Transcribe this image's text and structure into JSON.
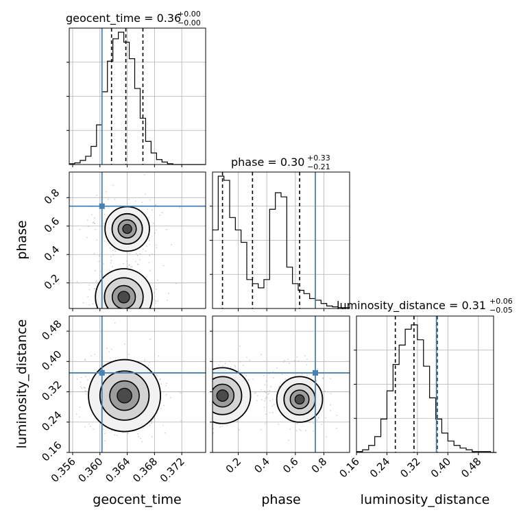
{
  "chart_data": {
    "type": "corner",
    "parameters": [
      "geocent_time",
      "phase",
      "luminosity_distance"
    ],
    "truth": {
      "geocent_time": 0.3603,
      "phase": 0.74,
      "luminosity_distance": 0.37
    },
    "titles": [
      {
        "text": "geocent_time = 0.36",
        "sup": "+0.00",
        "sub": "−0.00"
      },
      {
        "text": "phase = 0.30",
        "sup": "+0.33",
        "sub": "−0.21"
      },
      {
        "text": "luminosity_distance = 0.31",
        "sup": "+0.06",
        "sub": "−0.05"
      }
    ],
    "axis_labels": {
      "x": [
        "geocent_time",
        "phase",
        "luminosity_distance"
      ],
      "y": [
        "phase",
        "luminosity_distance"
      ]
    },
    "ticks": {
      "geocent_time": [
        "0.356",
        "0.360",
        "0.364",
        "0.368",
        "0.372"
      ],
      "phase": [
        "0.2",
        "0.4",
        "0.6",
        "0.8"
      ],
      "luminosity_distance": [
        "0.16",
        "0.24",
        "0.32",
        "0.40",
        "0.48"
      ]
    },
    "ranges": {
      "geocent_time": [
        0.3555,
        0.3755
      ],
      "phase": [
        0.02,
        0.98
      ],
      "luminosity_distance": [
        0.16,
        0.52
      ]
    },
    "histograms": {
      "geocent_time": {
        "edges_start": 0.3555,
        "bin_width": 0.0008,
        "counts": [
          1,
          2,
          5,
          10,
          22,
          48,
          88,
          125,
          152,
          160,
          148,
          128,
          92,
          56,
          28,
          14,
          6,
          3,
          1,
          0,
          0,
          0,
          0,
          0,
          0
        ],
        "quantiles": [
          0.3617,
          0.3638,
          0.3663
        ],
        "ylim": [
          0,
          165
        ]
      },
      "phase": {
        "edges_start": 0.02,
        "bin_width": 0.04,
        "counts": [
          95,
          160,
          155,
          110,
          95,
          80,
          35,
          30,
          25,
          35,
          120,
          140,
          135,
          50,
          30,
          22,
          18,
          12,
          10,
          6,
          3,
          2,
          1,
          1
        ],
        "quantiles": [
          0.09,
          0.3,
          0.63
        ],
        "ylim": [
          0,
          165
        ]
      },
      "luminosity_distance": {
        "edges_start": 0.16,
        "bin_width": 0.016,
        "counts": [
          1,
          3,
          8,
          18,
          38,
          70,
          100,
          122,
          140,
          145,
          128,
          98,
          62,
          38,
          22,
          13,
          8,
          5,
          3,
          1,
          1,
          1,
          0
        ],
        "quantiles": [
          0.262,
          0.311,
          0.372
        ],
        "ylim": [
          0,
          155
        ]
      }
    },
    "density_modes": [
      {
        "pair": [
          "geocent_time",
          "phase"
        ],
        "centers": [
          {
            "x": 0.3635,
            "y": 0.1,
            "w": 0.62
          },
          {
            "x": 0.364,
            "y": 0.58,
            "w": 0.38
          }
        ]
      },
      {
        "pair": [
          "geocent_time",
          "luminosity_distance"
        ],
        "centers": [
          {
            "x": 0.3636,
            "y": 0.31,
            "w": 1.0
          }
        ]
      },
      {
        "pair": [
          "phase",
          "luminosity_distance"
        ],
        "centers": [
          {
            "x": 0.09,
            "y": 0.31,
            "w": 0.6
          },
          {
            "x": 0.63,
            "y": 0.3,
            "w": 0.4
          }
        ]
      }
    ],
    "colors": {
      "truth": "#4682b4",
      "grid": "#b0b0b0",
      "hist": "#000000",
      "quantile": "#000000"
    },
    "grid": true,
    "legend": "none"
  }
}
